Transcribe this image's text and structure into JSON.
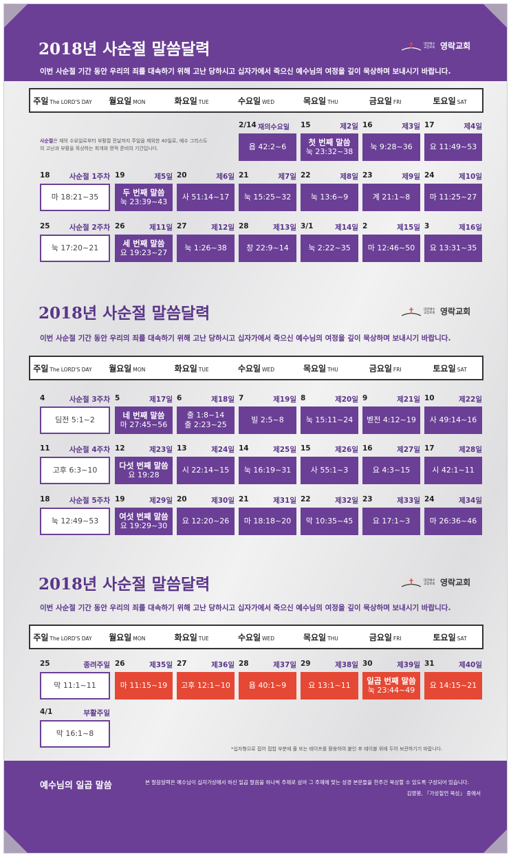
{
  "title": "2018년 사순절 말씀달력",
  "subtitle": "이번 사순절 기간 동안 우리의 죄를 대속하기 위해 고난 당하시고 십자가에서 죽으신 예수님의 여정을 깊이 묵상하며 보내시기 바랍니다.",
  "logo": {
    "small": "대한예수교장로회",
    "name": "영락교회"
  },
  "days": [
    {
      "ko": "주일",
      "en": "The LORD'S DAY"
    },
    {
      "ko": "월요일",
      "en": "MON"
    },
    {
      "ko": "화요일",
      "en": "TUE"
    },
    {
      "ko": "수요일",
      "en": "WED"
    },
    {
      "ko": "목요일",
      "en": "THU"
    },
    {
      "ko": "금요일",
      "en": "FRI"
    },
    {
      "ko": "토요일",
      "en": "SAT"
    }
  ],
  "note": {
    "highlight": "사순절",
    "text": "은 재의 수요일로부터 부활절 전날까지 주일을 제외한 40일로, 예수 그리스도의 고난과 부활을 묵상하는 회개와 영적 준비의 기간입니다."
  },
  "weeks": [
    {
      "cells": [
        null,
        null,
        null,
        {
          "num": "2/14",
          "mid": "재의수요일",
          "l1": "욥 42:2~6"
        },
        {
          "num": "15",
          "ord": "제2일",
          "l1": "첫 번째 말씀",
          "l2": "눅 23:32~38"
        },
        {
          "num": "16",
          "ord": "제3일",
          "l1": "눅 9:28~36"
        },
        {
          "num": "17",
          "ord": "제4일",
          "l1": "요 11:49~53"
        }
      ]
    },
    {
      "cells": [
        {
          "num": "18",
          "ord": "사순절 1주차",
          "l1": "마 18:21~35"
        },
        {
          "num": "19",
          "ord": "제5일",
          "l1": "두 번째 말씀",
          "l2": "눅 23:39~43"
        },
        {
          "num": "20",
          "ord": "제6일",
          "l1": "사 51:14~17"
        },
        {
          "num": "21",
          "ord": "제7일",
          "l1": "눅 15:25~32"
        },
        {
          "num": "22",
          "ord": "제8일",
          "l1": "눅 13:6~9"
        },
        {
          "num": "23",
          "ord": "제9일",
          "l1": "계 21:1~8"
        },
        {
          "num": "24",
          "ord": "제10일",
          "l1": "마 11:25~27"
        }
      ]
    },
    {
      "cells": [
        {
          "num": "25",
          "ord": "사순절 2주차",
          "l1": "눅 17:20~21"
        },
        {
          "num": "26",
          "ord": "제11일",
          "l1": "세 번째 말씀",
          "l2": "요 19:23~27"
        },
        {
          "num": "27",
          "ord": "제12일",
          "l1": "눅 1:26~38"
        },
        {
          "num": "28",
          "ord": "제13일",
          "l1": "창 22:9~14"
        },
        {
          "num": "3/1",
          "ord": "제14일",
          "l1": "눅 2:22~35"
        },
        {
          "num": "2",
          "ord": "제15일",
          "l1": "마 12:46~50"
        },
        {
          "num": "3",
          "ord": "제16일",
          "l1": "요 13:31~35"
        }
      ]
    },
    {
      "cells": [
        {
          "num": "4",
          "ord": "사순절 3주차",
          "l1": "딤전 5:1~2"
        },
        {
          "num": "5",
          "ord": "제17일",
          "l1": "네 번째 말씀",
          "l2": "마 27:45~56"
        },
        {
          "num": "6",
          "ord": "제18일",
          "l1": "출 1:8~14",
          "l2": "출 2:23~25",
          "plain2": true
        },
        {
          "num": "7",
          "ord": "제19일",
          "l1": "빌 2:5~8"
        },
        {
          "num": "8",
          "ord": "제20일",
          "l1": "눅 15:11~24"
        },
        {
          "num": "9",
          "ord": "제21일",
          "l1": "벧전 4:12~19"
        },
        {
          "num": "10",
          "ord": "제22일",
          "l1": "사 49:14~16"
        }
      ]
    },
    {
      "cells": [
        {
          "num": "11",
          "ord": "사순절 4주차",
          "l1": "고후 6:3~10"
        },
        {
          "num": "12",
          "ord": "제23일",
          "l1": "다섯 번째 말씀",
          "l2": "요 19:28"
        },
        {
          "num": "13",
          "ord": "제24일",
          "l1": "시 22:14~15"
        },
        {
          "num": "14",
          "ord": "제25일",
          "l1": "눅 16:19~31"
        },
        {
          "num": "15",
          "ord": "제26일",
          "l1": "사 55:1~3"
        },
        {
          "num": "16",
          "ord": "제27일",
          "l1": "요 4:3~15"
        },
        {
          "num": "17",
          "ord": "제28일",
          "l1": "시 42:1~11"
        }
      ]
    },
    {
      "cells": [
        {
          "num": "18",
          "ord": "사순절 5주차",
          "l1": "눅 12:49~53"
        },
        {
          "num": "19",
          "ord": "제29일",
          "l1": "여섯 번째 말씀",
          "l2": "요 19:29~30"
        },
        {
          "num": "20",
          "ord": "제30일",
          "l1": "요 12:20~26"
        },
        {
          "num": "21",
          "ord": "제31일",
          "l1": "마 18:18~20"
        },
        {
          "num": "22",
          "ord": "제32일",
          "l1": "막 10:35~45"
        },
        {
          "num": "23",
          "ord": "제33일",
          "l1": "요 17:1~3"
        },
        {
          "num": "24",
          "ord": "제34일",
          "l1": "마 26:36~46"
        }
      ]
    },
    {
      "cells": [
        {
          "num": "25",
          "ord": "종려주일",
          "l1": "막 11:1~11"
        },
        {
          "num": "26",
          "ord": "제35일",
          "l1": "마 11:15~19"
        },
        {
          "num": "27",
          "ord": "제36일",
          "l1": "고후 12:1~10"
        },
        {
          "num": "28",
          "ord": "제37일",
          "l1": "욥 40:1~9"
        },
        {
          "num": "29",
          "ord": "제38일",
          "l1": "요 13:1~11"
        },
        {
          "num": "30",
          "ord": "제39일",
          "l1": "일곱 번째 말씀",
          "l2": "눅 23:44~49"
        },
        {
          "num": "31",
          "ord": "제40일",
          "l1": "요 14:15~21"
        }
      ]
    },
    {
      "cells": [
        {
          "num": "4/1",
          "ord": "부활주일",
          "l1": "막 16:1~8"
        },
        null,
        null,
        null,
        null,
        null,
        null
      ]
    }
  ],
  "footnote": "*십자형으로 접어 접합 부분에 풀 또는 테이프를 활용하여 붙인 후 테이블 위에 두어 보관하기기 바랍니다.",
  "bottom": {
    "title": "예수님의 일곱 말씀",
    "text": "본 말씀달력은 예수님이 십자가상에서 하신 일곱 말씀을 하나씩 주제로 삼아 그 주제에 맞는 성경 본문들을 한주간 묵상할 수 있도록 구성되어 있습니다.",
    "source": "김영봉, 『가상칠언 묵상』 중에서"
  },
  "colors": {
    "purple": "#6a3f95",
    "red": "#e54834"
  }
}
